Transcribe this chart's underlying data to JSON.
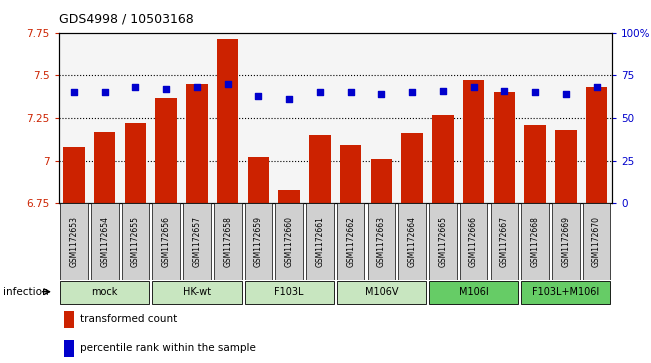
{
  "title": "GDS4998 / 10503168",
  "samples": [
    "GSM1172653",
    "GSM1172654",
    "GSM1172655",
    "GSM1172656",
    "GSM1172657",
    "GSM1172658",
    "GSM1172659",
    "GSM1172660",
    "GSM1172661",
    "GSM1172662",
    "GSM1172663",
    "GSM1172664",
    "GSM1172665",
    "GSM1172666",
    "GSM1172667",
    "GSM1172668",
    "GSM1172669",
    "GSM1172670"
  ],
  "bar_values": [
    7.08,
    7.17,
    7.22,
    7.37,
    7.45,
    7.71,
    7.02,
    6.83,
    7.15,
    7.09,
    7.01,
    7.16,
    7.27,
    7.47,
    7.4,
    7.21,
    7.18,
    7.43
  ],
  "percentile_values": [
    65,
    65,
    68,
    67,
    68,
    70,
    63,
    61,
    65,
    65,
    64,
    65,
    66,
    68,
    66,
    65,
    64,
    68
  ],
  "groups": [
    {
      "label": "mock",
      "start": 0,
      "end": 2
    },
    {
      "label": "HK-wt",
      "start": 3,
      "end": 5
    },
    {
      "label": "F103L",
      "start": 6,
      "end": 8
    },
    {
      "label": "M106V",
      "start": 9,
      "end": 11
    },
    {
      "label": "M106I",
      "start": 12,
      "end": 14
    },
    {
      "label": "F103L+M106I",
      "start": 15,
      "end": 17
    }
  ],
  "light_green": "#c8e6c0",
  "dark_green": "#66cc66",
  "bar_color": "#cc2200",
  "dot_color": "#0000cc",
  "ylim_left": [
    6.75,
    7.75
  ],
  "ylim_right": [
    0,
    100
  ],
  "yticks_left": [
    6.75,
    7.0,
    7.25,
    7.5,
    7.75
  ],
  "yticks_right": [
    0,
    25,
    50,
    75,
    100
  ],
  "ytick_labels_left": [
    "6.75",
    "7",
    "7.25",
    "7.5",
    "7.75"
  ],
  "ytick_labels_right": [
    "0",
    "25",
    "50",
    "75",
    "100%"
  ],
  "background_color": "#ffffff",
  "infection_label": "infection",
  "legend_bar_label": "transformed count",
  "legend_dot_label": "percentile rank within the sample",
  "sample_box_color": "#d0d0d0"
}
